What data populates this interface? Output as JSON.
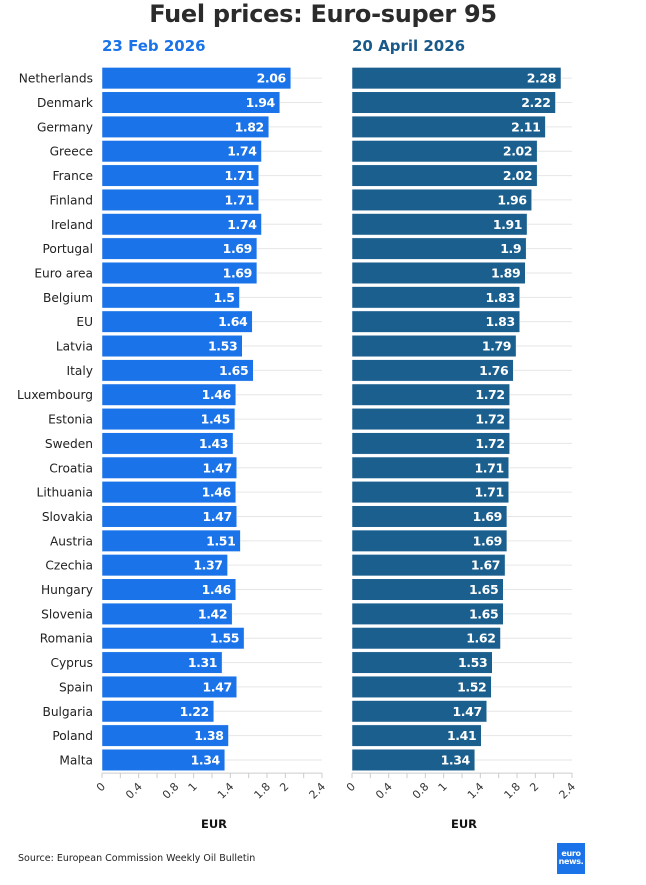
{
  "header": {
    "title": "Fuel prices: Euro-super 95",
    "subtitle_left": "23 Feb 2026",
    "subtitle_right": "20 April 2026"
  },
  "footer": {
    "source": "Source: European Commission Weekly Oil Bulletin",
    "logo_line1": "euro",
    "logo_line2": "news."
  },
  "colors": {
    "left_bar": "#1a73e8",
    "right_bar": "#1a5f8e",
    "left_subtitle": "#1a73e8",
    "right_subtitle": "#1a5a8a"
  },
  "chart_data": [
    {
      "type": "bar",
      "orientation": "horizontal",
      "title": "23 Feb 2026",
      "xlabel": "EUR",
      "ylabel": "",
      "xlim": [
        0,
        2.4
      ],
      "xticks": [
        0,
        0.4,
        0.8,
        1,
        1.4,
        1.8,
        2,
        2.4
      ],
      "grid": true,
      "categories": [
        "Netherlands",
        "Denmark",
        "Germany",
        "Greece",
        "France",
        "Finland",
        "Ireland",
        "Portugal",
        "Euro area",
        "Belgium",
        "EU",
        "Latvia",
        "Italy",
        "Luxembourg",
        "Estonia",
        "Sweden",
        "Croatia",
        "Lithuania",
        "Slovakia",
        "Austria",
        "Czechia",
        "Hungary",
        "Slovenia",
        "Romania",
        "Cyprus",
        "Spain",
        "Bulgaria",
        "Poland",
        "Malta"
      ],
      "values": [
        2.06,
        1.94,
        1.82,
        1.74,
        1.71,
        1.71,
        1.74,
        1.69,
        1.69,
        1.5,
        1.64,
        1.53,
        1.65,
        1.46,
        1.45,
        1.43,
        1.47,
        1.46,
        1.47,
        1.51,
        1.37,
        1.46,
        1.42,
        1.55,
        1.31,
        1.47,
        1.22,
        1.38,
        1.34
      ],
      "data_labels": true
    },
    {
      "type": "bar",
      "orientation": "horizontal",
      "title": "20 April 2026",
      "xlabel": "EUR",
      "ylabel": "",
      "xlim": [
        0,
        2.4
      ],
      "xticks": [
        0,
        0.4,
        0.8,
        1,
        1.4,
        1.8,
        2,
        2.4
      ],
      "grid": true,
      "categories": [
        "Netherlands",
        "Denmark",
        "Germany",
        "Greece",
        "France",
        "Finland",
        "Ireland",
        "Portugal",
        "Euro area",
        "Belgium",
        "EU",
        "Latvia",
        "Italy",
        "Luxembourg",
        "Estonia",
        "Sweden",
        "Croatia",
        "Lithuania",
        "Slovakia",
        "Austria",
        "Czechia",
        "Hungary",
        "Slovenia",
        "Romania",
        "Cyprus",
        "Spain",
        "Bulgaria",
        "Poland",
        "Malta"
      ],
      "values": [
        2.28,
        2.22,
        2.11,
        2.02,
        2.02,
        1.96,
        1.91,
        1.9,
        1.89,
        1.83,
        1.83,
        1.79,
        1.76,
        1.72,
        1.72,
        1.72,
        1.71,
        1.71,
        1.69,
        1.69,
        1.67,
        1.65,
        1.65,
        1.62,
        1.53,
        1.52,
        1.47,
        1.41,
        1.34
      ],
      "data_labels": true
    }
  ]
}
